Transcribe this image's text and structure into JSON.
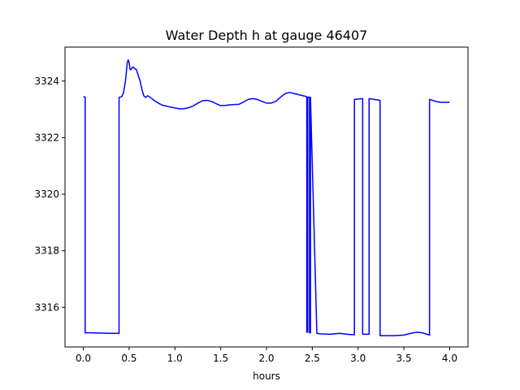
{
  "chart_data": {
    "type": "line",
    "title": "Water Depth h at gauge 46407",
    "xlabel": "hours",
    "ylabel": "",
    "xlim": [
      -0.2,
      4.2
    ],
    "ylim": [
      3314.6,
      3325.2
    ],
    "x_ticks": [
      0.0,
      0.5,
      1.0,
      1.5,
      2.0,
      2.5,
      3.0,
      3.5,
      4.0
    ],
    "x_tick_labels": [
      "0.0",
      "0.5",
      "1.0",
      "1.5",
      "2.0",
      "2.5",
      "3.0",
      "3.5",
      "4.0"
    ],
    "y_ticks": [
      3316,
      3318,
      3320,
      3322,
      3324
    ],
    "y_tick_labels": [
      "3316",
      "3318",
      "3320",
      "3322",
      "3324"
    ],
    "grid": false,
    "series": [
      {
        "color": "#0000ff",
        "x": [
          0.0,
          0.02,
          0.02,
          0.1,
          0.2,
          0.3,
          0.39,
          0.39,
          0.42,
          0.44,
          0.46,
          0.48,
          0.49,
          0.5,
          0.51,
          0.52,
          0.54,
          0.56,
          0.58,
          0.6,
          0.62,
          0.64,
          0.66,
          0.68,
          0.7,
          0.72,
          0.74,
          0.78,
          0.82,
          0.86,
          0.9,
          0.95,
          1.0,
          1.05,
          1.1,
          1.15,
          1.2,
          1.25,
          1.3,
          1.35,
          1.4,
          1.45,
          1.5,
          1.55,
          1.6,
          1.65,
          1.7,
          1.75,
          1.8,
          1.85,
          1.9,
          1.95,
          2.0,
          2.05,
          2.1,
          2.15,
          2.2,
          2.25,
          2.3,
          2.35,
          2.4,
          2.44,
          2.44,
          2.45,
          2.45,
          2.47,
          2.47,
          2.48,
          2.48,
          2.55,
          2.6,
          2.7,
          2.8,
          2.9,
          2.96,
          2.96,
          3.05,
          3.05,
          3.12,
          3.12,
          3.24,
          3.24,
          3.3,
          3.4,
          3.5,
          3.6,
          3.65,
          3.7,
          3.78,
          3.78,
          3.85,
          3.9,
          4.0
        ],
        "y": [
          3323.45,
          3323.43,
          3315.1,
          3315.1,
          3315.09,
          3315.08,
          3315.08,
          3323.42,
          3323.45,
          3323.6,
          3324.0,
          3324.65,
          3324.75,
          3324.65,
          3324.42,
          3324.4,
          3324.5,
          3324.45,
          3324.4,
          3324.2,
          3324.0,
          3323.7,
          3323.48,
          3323.42,
          3323.48,
          3323.45,
          3323.4,
          3323.3,
          3323.22,
          3323.15,
          3323.12,
          3323.08,
          3323.05,
          3323.02,
          3323.02,
          3323.06,
          3323.12,
          3323.22,
          3323.3,
          3323.32,
          3323.28,
          3323.2,
          3323.13,
          3323.14,
          3323.16,
          3323.17,
          3323.18,
          3323.26,
          3323.35,
          3323.38,
          3323.35,
          3323.28,
          3323.22,
          3323.22,
          3323.28,
          3323.42,
          3323.55,
          3323.6,
          3323.56,
          3323.52,
          3323.48,
          3323.45,
          3315.12,
          3315.12,
          3323.43,
          3323.43,
          3315.1,
          3315.1,
          3323.43,
          3315.08,
          3315.06,
          3315.05,
          3315.08,
          3315.04,
          3315.03,
          3323.35,
          3323.38,
          3315.05,
          3315.05,
          3323.38,
          3323.32,
          3315.0,
          3315.0,
          3315.0,
          3315.02,
          3315.1,
          3315.12,
          3315.1,
          3315.02,
          3323.35,
          3323.28,
          3323.25,
          3323.25
        ]
      }
    ]
  }
}
